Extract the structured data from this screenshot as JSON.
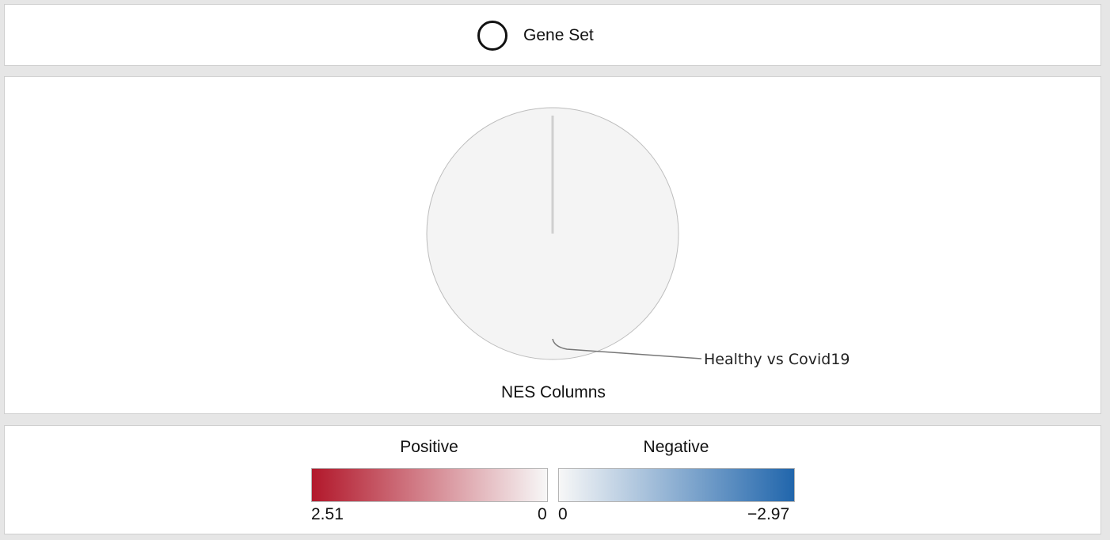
{
  "header": {
    "label": "Gene Set",
    "icon": "circle-outline-icon"
  },
  "chart_data": {
    "type": "pie",
    "title": "NES Columns",
    "slices": [
      {
        "label": "Healthy vs Covid19",
        "value": 100,
        "color": "#f4f4f4"
      }
    ],
    "outline_color": "#bdbdbd"
  },
  "legend": {
    "positive": {
      "title": "Positive",
      "min_label": "2.51",
      "max_label": "0",
      "color_start": "#b2182b",
      "color_end": "#f7f7f7"
    },
    "negative": {
      "title": "Negative",
      "min_label": "0",
      "max_label": "−2.97",
      "color_start": "#f7f7f7",
      "color_end": "#2166ac"
    }
  }
}
